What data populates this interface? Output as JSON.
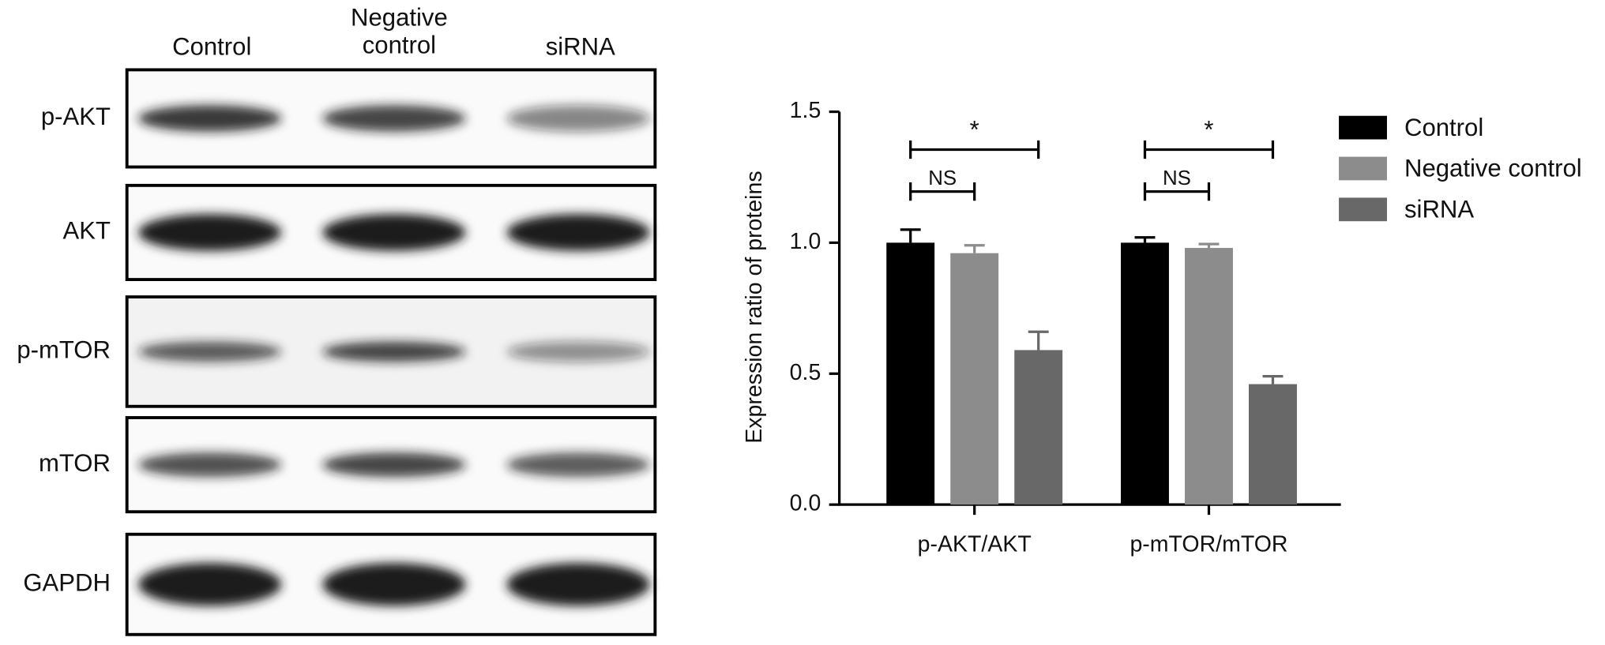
{
  "blot": {
    "columns": [
      "Control",
      "Negative control",
      "siRNA"
    ],
    "rows": [
      "p-AKT",
      "AKT",
      "p-mTOR",
      "mTOR",
      "GAPDH"
    ]
  },
  "chart_data": {
    "type": "bar",
    "ylabel": "Expression ratio of proteins",
    "categories": [
      "p-AKT/AKT",
      "p-mTOR/mTOR"
    ],
    "series": [
      {
        "name": "Control",
        "color": "#000000",
        "values": [
          1.0,
          1.0
        ],
        "errors": [
          0.05,
          0.02
        ]
      },
      {
        "name": "Negative control",
        "color": "#8c8c8c",
        "values": [
          0.96,
          0.98
        ],
        "errors": [
          0.03,
          0.015
        ]
      },
      {
        "name": "siRNA",
        "color": "#686868",
        "values": [
          0.59,
          0.46
        ],
        "errors": [
          0.07,
          0.03
        ]
      }
    ],
    "ylim": [
      0,
      1.5
    ],
    "yticks": [
      {
        "value": 0,
        "label": "0.0"
      },
      {
        "value": 0.5,
        "label": "0.5"
      },
      {
        "value": 1,
        "label": "1.0"
      },
      {
        "value": 1.5,
        "label": "1.5"
      }
    ],
    "annotations": [
      "*",
      "NS",
      "*",
      "NS"
    ],
    "legend": "right"
  }
}
